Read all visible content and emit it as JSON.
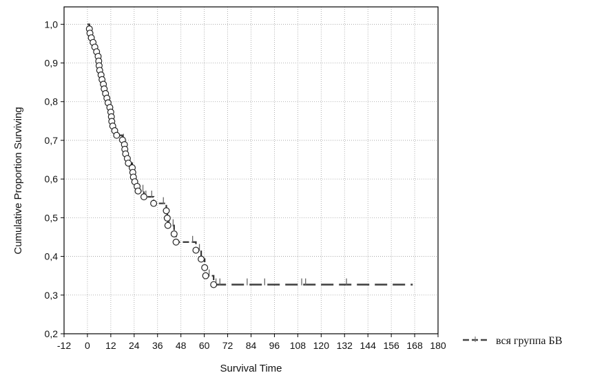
{
  "chart_data": {
    "type": "line",
    "title": "",
    "xlabel": "Survival Time",
    "ylabel": "Cumulative Proportion Surviving",
    "xlim": [
      -12,
      180
    ],
    "ylim": [
      0.2,
      1.05
    ],
    "x_ticks": [
      -12,
      0,
      12,
      24,
      36,
      48,
      60,
      72,
      84,
      96,
      108,
      120,
      132,
      144,
      156,
      168,
      180
    ],
    "x_tick_labels": [
      "-12",
      "0",
      "12",
      "24",
      "36",
      "48",
      "60",
      "72",
      "84",
      "96",
      "108",
      "120",
      "132",
      "144",
      "156",
      "168",
      "180"
    ],
    "y_ticks": [
      0.2,
      0.3,
      0.4,
      0.5,
      0.6,
      0.7,
      0.8,
      0.9,
      1.0
    ],
    "y_tick_labels": [
      "0,2",
      "0,3",
      "0,4",
      "0,5",
      "0,6",
      "0,7",
      "0,8",
      "0,9",
      "1,0"
    ],
    "grid": true,
    "legend": {
      "position": "right",
      "entries": [
        "вся группа БВ"
      ]
    },
    "series": [
      {
        "name": "вся группа БВ",
        "events": [
          [
            1,
            0.988
          ],
          [
            1.3,
            0.977
          ],
          [
            2,
            0.965
          ],
          [
            2.9,
            0.953
          ],
          [
            3.8,
            0.941
          ],
          [
            4.7,
            0.929
          ],
          [
            5.5,
            0.917
          ],
          [
            5.8,
            0.905
          ],
          [
            6,
            0.893
          ],
          [
            6.3,
            0.881
          ],
          [
            7,
            0.869
          ],
          [
            7.5,
            0.857
          ],
          [
            8.2,
            0.845
          ],
          [
            8.6,
            0.833
          ],
          [
            9.3,
            0.821
          ],
          [
            10,
            0.809
          ],
          [
            10.6,
            0.797
          ],
          [
            11.5,
            0.785
          ],
          [
            12,
            0.773
          ],
          [
            12.3,
            0.761
          ],
          [
            12.5,
            0.749
          ],
          [
            13,
            0.737
          ],
          [
            14,
            0.725
          ],
          [
            15,
            0.713
          ],
          [
            18,
            0.701
          ],
          [
            19,
            0.689
          ],
          [
            19.2,
            0.677
          ],
          [
            19.6,
            0.665
          ],
          [
            20.5,
            0.653
          ],
          [
            21,
            0.641
          ],
          [
            23,
            0.629
          ],
          [
            23.3,
            0.617
          ],
          [
            23.6,
            0.605
          ],
          [
            24.3,
            0.593
          ],
          [
            25.5,
            0.581
          ],
          [
            26,
            0.569
          ],
          [
            29,
            0.554
          ],
          [
            34,
            0.537
          ],
          [
            40.5,
            0.518
          ],
          [
            41,
            0.499
          ],
          [
            41.3,
            0.48
          ],
          [
            44.5,
            0.458
          ],
          [
            45.5,
            0.437
          ],
          [
            55.7,
            0.416
          ],
          [
            58.4,
            0.393
          ],
          [
            60.2,
            0.371
          ],
          [
            60.7,
            0.35
          ],
          [
            64.8,
            0.327
          ]
        ],
        "censored_x": [
          15,
          18.5,
          21.5,
          28.5,
          30,
          33,
          39,
          42,
          44,
          54,
          57.5,
          62.5,
          66,
          68,
          82,
          91,
          110,
          112,
          133
        ],
        "end_x": 167
      }
    ]
  }
}
